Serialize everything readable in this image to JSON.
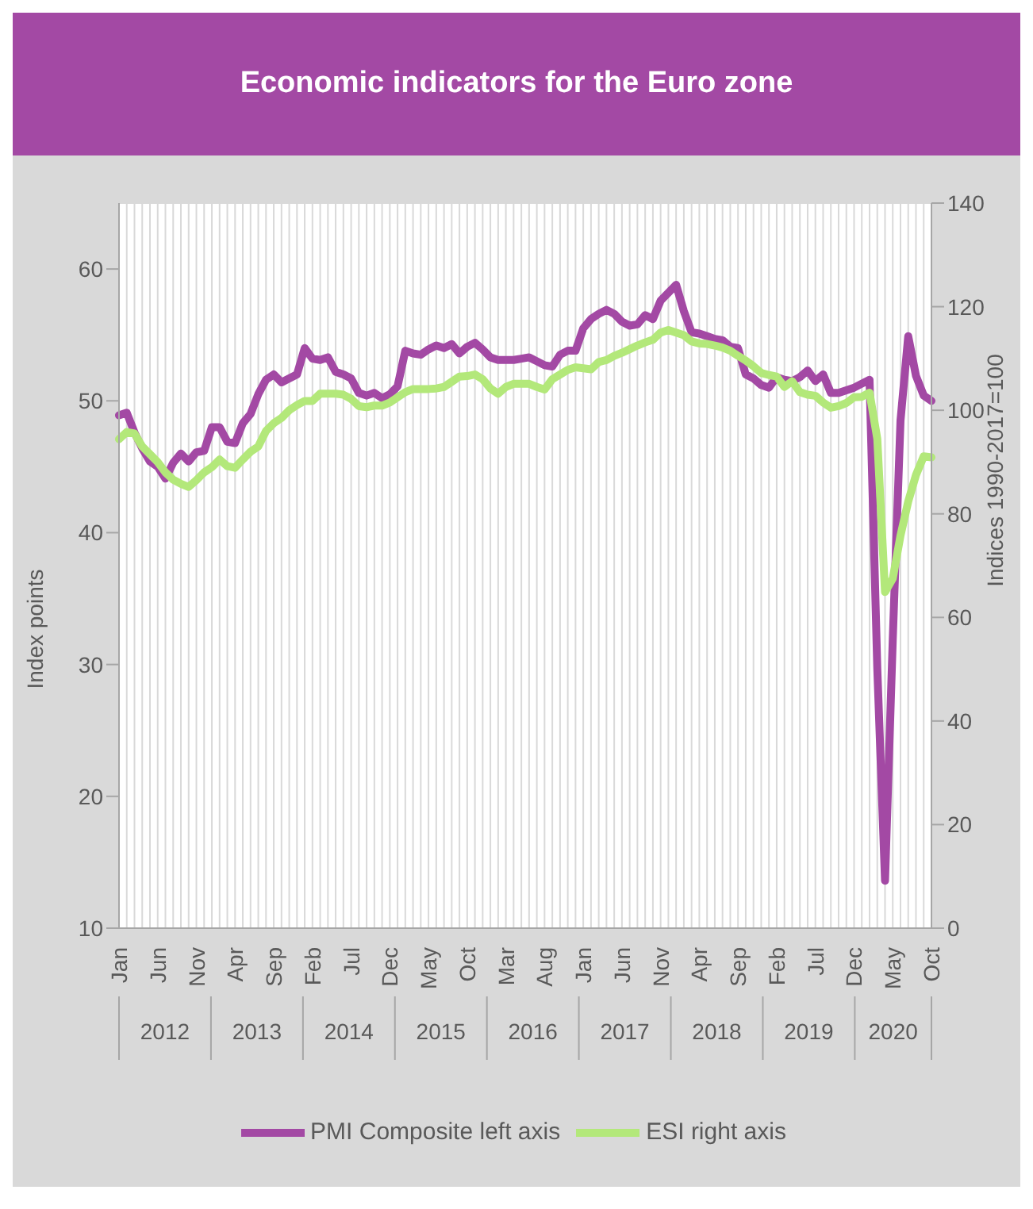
{
  "chart_data": {
    "type": "line",
    "title": "Economic indicators for the Euro zone",
    "ylabel": "Index points",
    "y2label": "Indices 1990-2017=100",
    "categories": [
      "Jan",
      null,
      null,
      null,
      null,
      "Jun",
      null,
      null,
      null,
      null,
      "Nov",
      null,
      null,
      null,
      null,
      "Apr",
      null,
      null,
      null,
      null,
      "Sep",
      null,
      null,
      null,
      null,
      "Feb",
      null,
      null,
      null,
      null,
      "Jul",
      null,
      null,
      null,
      null,
      "Dec",
      null,
      null,
      null,
      null,
      "May",
      null,
      null,
      null,
      null,
      "Oct",
      null,
      null,
      null,
      null,
      "Mar",
      null,
      null,
      null,
      null,
      "Aug",
      null,
      null,
      null,
      null,
      "Jan",
      null,
      null,
      null,
      null,
      "Jun",
      null,
      null,
      null,
      null,
      "Nov",
      null,
      null,
      null,
      null,
      "Apr",
      null,
      null,
      null,
      null,
      "Sep",
      null,
      null,
      null,
      null,
      "Feb",
      null,
      null,
      null,
      null,
      "Jul",
      null,
      null,
      null,
      null,
      "Dec",
      null,
      null,
      null,
      null,
      "May",
      null,
      null,
      null,
      null,
      "Oct"
    ],
    "annotations": [
      "2012",
      "2013",
      "2014",
      "2015",
      "2016",
      "2017",
      "2018",
      "2019",
      "2020"
    ],
    "series": [
      {
        "name": "PMI Composite left axis",
        "color": "#a349a4",
        "axis": "y",
        "values": [
          48.9,
          49.1,
          47.6,
          46.4,
          45.4,
          45.0,
          44.1,
          45.3,
          46.0,
          45.4,
          46.1,
          46.2,
          48.0,
          48.0,
          46.9,
          46.8,
          48.3,
          49.0,
          50.5,
          51.6,
          52.0,
          51.4,
          51.7,
          52.0,
          54.0,
          53.2,
          53.1,
          53.3,
          52.2,
          52.0,
          51.7,
          50.6,
          50.4,
          50.6,
          50.2,
          50.5,
          51.1,
          53.8,
          53.6,
          53.5,
          53.9,
          54.2,
          54.0,
          54.3,
          53.6,
          54.1,
          54.4,
          53.9,
          53.3,
          53.1,
          53.1,
          53.1,
          53.2,
          53.3,
          53.0,
          52.7,
          52.6,
          53.5,
          53.8,
          53.8,
          55.5,
          56.2,
          56.6,
          56.9,
          56.6,
          56.0,
          55.7,
          55.8,
          56.5,
          56.2,
          57.6,
          58.2,
          58.8,
          56.8,
          55.2,
          55.1,
          54.9,
          54.7,
          54.6,
          54.1,
          54.0,
          52.0,
          51.7,
          51.2,
          51.0,
          51.8,
          51.6,
          51.5,
          51.8,
          52.3,
          51.5,
          52.0,
          50.6,
          50.6,
          50.8,
          51.0,
          51.3,
          51.6,
          29.7,
          13.6,
          31.9,
          48.5,
          54.9,
          51.9,
          50.4,
          50.0
        ]
      },
      {
        "name": "ESI right axis",
        "color": "#b3e87a",
        "axis": "y2",
        "values": [
          94.4,
          95.8,
          95.5,
          93,
          91.5,
          90,
          88,
          86.6,
          85.8,
          85.2,
          86.5,
          88,
          89,
          90.5,
          89.2,
          88.9,
          90.5,
          92,
          93,
          96,
          97.5,
          98.5,
          100,
          101,
          101.8,
          101.8,
          103.2,
          103.2,
          103.2,
          103.0,
          102.2,
          100.8,
          100.6,
          100.9,
          100.9,
          101.5,
          102.5,
          103.5,
          104.1,
          104.1,
          104.1,
          104.2,
          104.5,
          105.5,
          106.5,
          106.6,
          106.9,
          106,
          104.2,
          103.2,
          104.5,
          105.1,
          105.1,
          105.1,
          104.5,
          104,
          106,
          106.9,
          107.8,
          108.3,
          108.1,
          107.9,
          109.3,
          109.7,
          110.5,
          111.1,
          111.8,
          112.5,
          113.1,
          113.6,
          115,
          115.5,
          115,
          114.5,
          113.3,
          112.9,
          112.8,
          112.5,
          112.1,
          111.5,
          110.5,
          109.6,
          108.5,
          107.2,
          106.8,
          106.5,
          104.5,
          105.6,
          103.5,
          103.0,
          102.8,
          101.5,
          100.5,
          100.8,
          101.4,
          102.5,
          102.6,
          103.4,
          94.5,
          64.9,
          67.5,
          75.8,
          82.4,
          87.5,
          91.1,
          90.9
        ]
      }
    ],
    "ylim": [
      10,
      65
    ],
    "yticks": [
      10,
      20,
      30,
      40,
      50,
      60
    ],
    "y2lim": [
      0,
      140
    ],
    "y2ticks": [
      0,
      20,
      40,
      60,
      80,
      100,
      120,
      140
    ],
    "grid": true,
    "legend": "bottom",
    "marker": "none",
    "line_style": "solid"
  }
}
